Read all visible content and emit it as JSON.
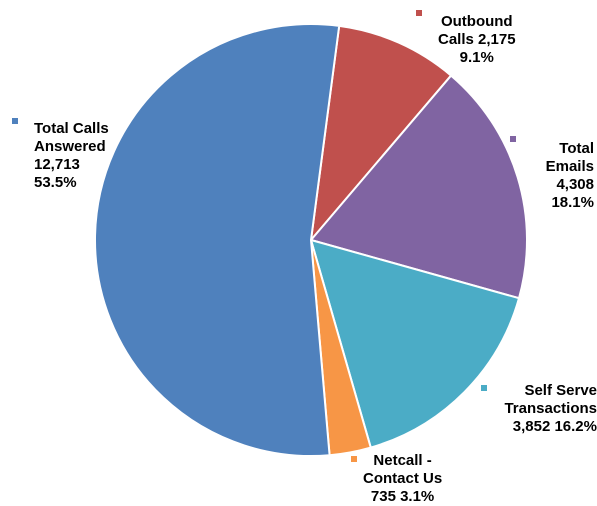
{
  "chart_data": {
    "type": "pie",
    "title": "",
    "slices": [
      {
        "label_lines": [
          "Outbound",
          "Calls 2,175",
          "9.1%"
        ],
        "value": 2175,
        "percent": "9.1%",
        "color": "#C0504D"
      },
      {
        "label_lines": [
          "Total",
          "Emails",
          "4,308",
          "18.1%"
        ],
        "value": 4308,
        "percent": "18.1%",
        "color": "#8064A2"
      },
      {
        "label_lines": [
          "Self Serve",
          "Transactions",
          "3,852  16.2%"
        ],
        "value": 3852,
        "percent": "16.2%",
        "color": "#4BACC6"
      },
      {
        "label_lines": [
          "Netcall -",
          "Contact Us",
          "735  3.1%"
        ],
        "value": 735,
        "percent": "3.1%",
        "color": "#F79646"
      },
      {
        "label_lines": [
          "Total Calls",
          "Answered",
          "12,713",
          "53.5%"
        ],
        "value": 12713,
        "percent": "53.5%",
        "color": "#4F81BD"
      }
    ]
  }
}
